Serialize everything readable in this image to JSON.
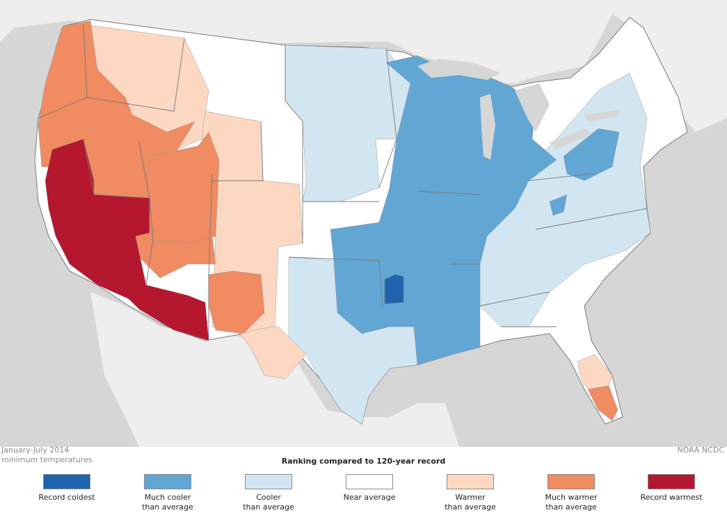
{
  "map": {
    "period": "January-July 2014",
    "variable": "minimum temperatures",
    "source": "NOAA NCDC",
    "legend_title": "Ranking compared to 120-year record",
    "legend": [
      {
        "label": "Record coldest",
        "color": "#1f63ad"
      },
      {
        "label": "Much cooler\nthan average",
        "color": "#62a6d4"
      },
      {
        "label": "Cooler\nthan average",
        "color": "#d2e6f2"
      },
      {
        "label": "Near average",
        "color": "#ffffff"
      },
      {
        "label": "Warmer\nthan average",
        "color": "#fcd8c3"
      },
      {
        "label": "Much warmer\nthan average",
        "color": "#f08b62"
      },
      {
        "label": "Record warmest",
        "color": "#b5172e"
      }
    ],
    "colors": {
      "land_outside": "#eeeeee",
      "water": "#d6d6d6",
      "border": "#777777"
    }
  }
}
